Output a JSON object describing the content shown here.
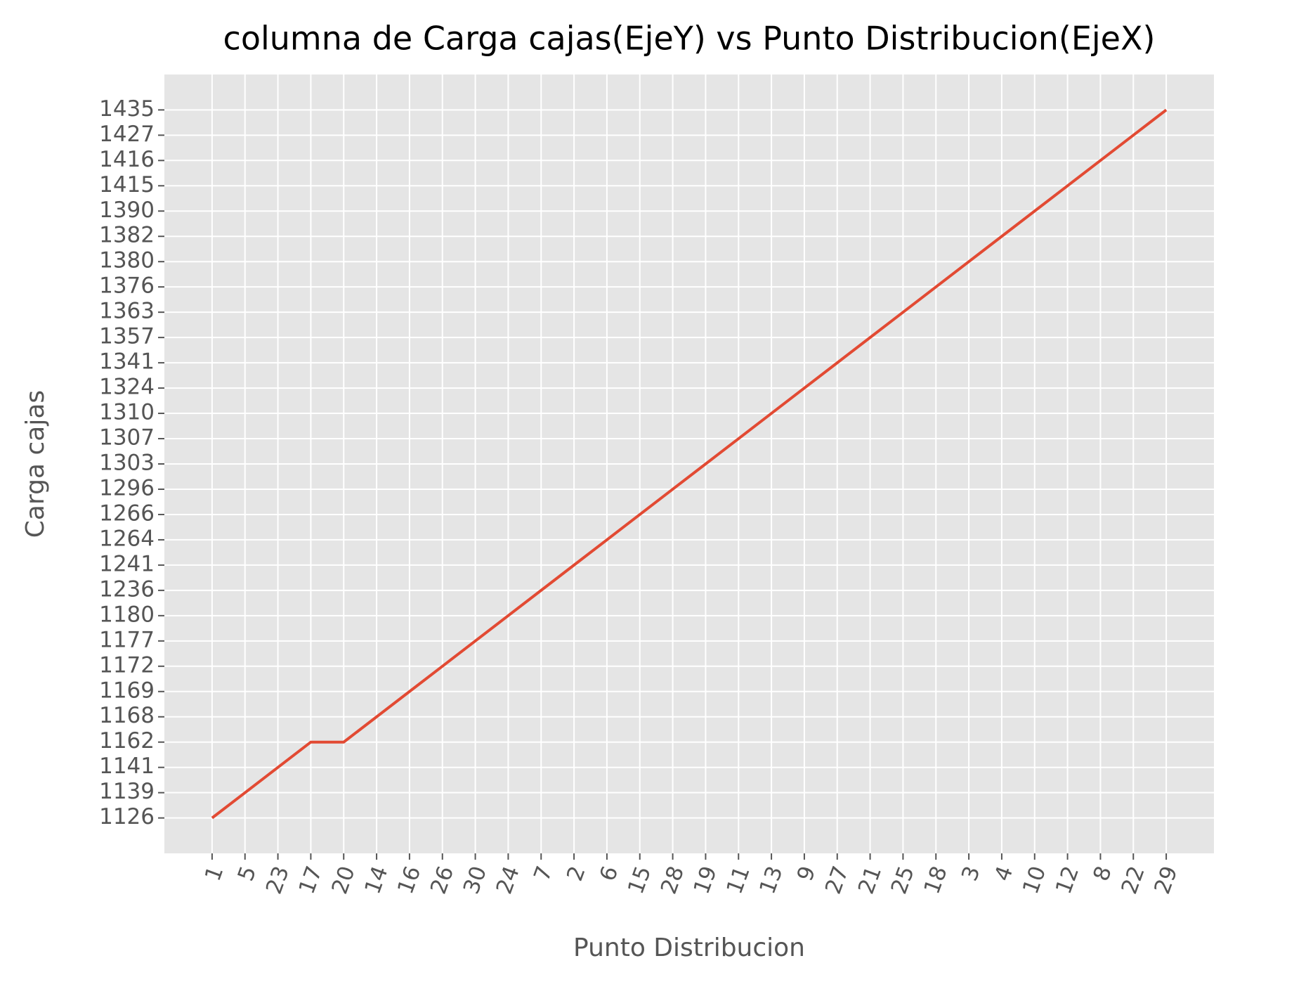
{
  "chart_data": {
    "type": "line",
    "title": "columna de Carga cajas(EjeY) vs Punto Distribucion(EjeX)",
    "x_label": "Punto Distribucion",
    "y_label": "Carga cajas",
    "categories": [
      "1",
      "5",
      "23",
      "17",
      "20",
      "14",
      "16",
      "26",
      "30",
      "24",
      "7",
      "2",
      "6",
      "15",
      "28",
      "19",
      "11",
      "13",
      "9",
      "27",
      "21",
      "25",
      "18",
      "3",
      "4",
      "10",
      "12",
      "8",
      "22",
      "29"
    ],
    "yscale": "categorical",
    "yticks": [
      1126,
      1139,
      1141,
      1162,
      1168,
      1169,
      1172,
      1177,
      1180,
      1236,
      1241,
      1264,
      1266,
      1296,
      1303,
      1307,
      1310,
      1324,
      1341,
      1357,
      1363,
      1376,
      1380,
      1382,
      1390,
      1415,
      1416,
      1427,
      1435
    ],
    "values": [
      1126,
      1139,
      1141,
      1162,
      1162,
      1168,
      1169,
      1172,
      1177,
      1180,
      1236,
      1241,
      1264,
      1266,
      1296,
      1303,
      1307,
      1310,
      1324,
      1341,
      1357,
      1363,
      1376,
      1380,
      1382,
      1390,
      1415,
      1416,
      1427,
      1435
    ],
    "color": "#e24a33",
    "grid": true
  }
}
